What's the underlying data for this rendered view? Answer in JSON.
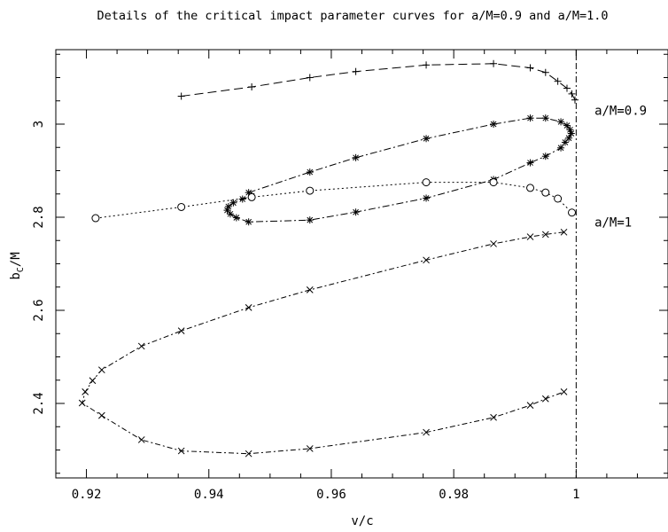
{
  "chart_data": {
    "type": "line",
    "title": "Details of the critical impact parameter curves for a/M=0.9 and a/M=1.0",
    "xlabel": "v/c",
    "ylabel_main": "b",
    "ylabel_sub": "C",
    "ylabel_tail": "/M",
    "xlim": [
      0.915,
      1.015
    ],
    "ylim": [
      2.24,
      3.16
    ],
    "xticks": [
      0.92,
      0.94,
      0.96,
      0.98,
      1.0
    ],
    "xtick_labels": [
      "0.92",
      "0.94",
      "0.96",
      "0.98",
      "1"
    ],
    "yticks": [
      2.4,
      2.6,
      2.8,
      3.0
    ],
    "ytick_labels": [
      "2.4",
      "2.6",
      "2.8",
      "3"
    ],
    "grid": false,
    "annotations": [
      {
        "text": "a/M=0.9",
        "x": 1.003,
        "y": 3.03
      },
      {
        "text": "a/M=1",
        "x": 1.003,
        "y": 2.79
      }
    ],
    "vline": {
      "x": 1.0,
      "style": "dash-dot"
    },
    "series": [
      {
        "marker": "plus",
        "dash": "10,5",
        "x": [
          0.9355,
          0.947,
          0.9565,
          0.964,
          0.9755,
          0.9865,
          0.9925,
          0.995,
          0.997,
          0.9985,
          0.9993,
          0.9998
        ],
        "y": [
          3.06,
          3.08,
          3.1,
          3.113,
          3.127,
          3.13,
          3.121,
          3.111,
          3.092,
          3.077,
          3.065,
          3.052
        ]
      },
      {
        "marker": "star",
        "dash": "8,3,2,3",
        "x": [
          0.9465,
          0.9565,
          0.964,
          0.9755,
          0.9865,
          0.9925,
          0.995,
          0.9975,
          0.9985,
          0.999,
          0.9992,
          0.9988,
          0.9982,
          0.9975,
          0.995,
          0.9925,
          0.9865,
          0.9755,
          0.964,
          0.9565,
          0.9465,
          0.9445,
          0.9435,
          0.943,
          0.9432,
          0.944,
          0.9455,
          0.947
        ],
        "y": [
          2.853,
          2.897,
          2.928,
          2.969,
          3.0,
          3.013,
          3.013,
          3.005,
          2.997,
          2.988,
          2.98,
          2.97,
          2.961,
          2.949,
          2.931,
          2.917,
          2.881,
          2.841,
          2.811,
          2.794,
          2.79,
          2.799,
          2.807,
          2.815,
          2.823,
          2.831,
          2.839,
          2.846
        ]
      },
      {
        "marker": "circle",
        "dash": "2,3",
        "x": [
          0.9215,
          0.9355,
          0.947,
          0.9565,
          0.9755,
          0.9865,
          0.9925,
          0.995,
          0.997,
          0.9993
        ],
        "y": [
          2.798,
          2.822,
          2.843,
          2.857,
          2.875,
          2.875,
          2.863,
          2.853,
          2.84,
          2.81
        ]
      },
      {
        "marker": "x",
        "dash": "6,3,2,3",
        "x": [
          0.998,
          0.995,
          0.9925,
          0.9865,
          0.9755,
          0.9565,
          0.9465,
          0.9355,
          0.929,
          0.9225,
          0.921,
          0.9198,
          0.9193,
          0.9225,
          0.929,
          0.9355,
          0.9465,
          0.9565,
          0.9755,
          0.9865,
          0.9925,
          0.995,
          0.998
        ],
        "y": [
          2.768,
          2.763,
          2.758,
          2.743,
          2.708,
          2.644,
          2.606,
          2.556,
          2.523,
          2.472,
          2.449,
          2.425,
          2.401,
          2.374,
          2.322,
          2.298,
          2.292,
          2.303,
          2.338,
          2.37,
          2.396,
          2.41,
          2.425
        ]
      }
    ]
  }
}
